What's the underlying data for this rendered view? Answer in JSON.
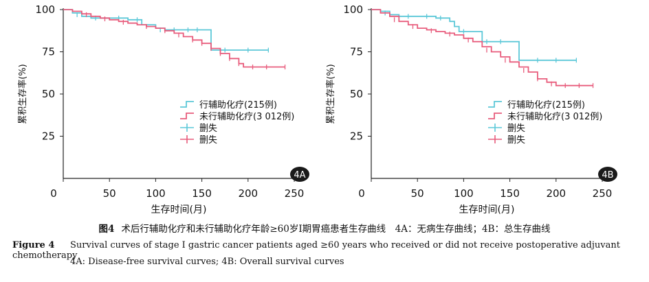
{
  "chart_data": [
    {
      "type": "line",
      "panel_tag": "4A",
      "xlabel": "生存时间(月)",
      "ylabel": "累积生存率(%)",
      "xlim": [
        0,
        250
      ],
      "ylim": [
        0,
        100
      ],
      "xticks": [
        0,
        50,
        100,
        150,
        200,
        250
      ],
      "yticks": [
        25,
        50,
        75,
        100
      ],
      "legend_position": "center-right",
      "series": [
        {
          "name": "行辅助化疗(215例)",
          "color": "#5cc8d8",
          "censor_label": "删失",
          "x": [
            0,
            10,
            20,
            30,
            40,
            55,
            70,
            85,
            100,
            110,
            120,
            130,
            140,
            150,
            160,
            160,
            222
          ],
          "y": [
            100,
            98,
            96,
            95,
            95,
            95,
            94,
            91,
            89,
            88,
            88,
            88,
            88,
            88,
            88,
            76,
            76
          ],
          "censored": [
            [
              15,
              97
            ],
            [
              35,
              95
            ],
            [
              60,
              95
            ],
            [
              80,
              94
            ],
            [
              105,
              88
            ],
            [
              120,
              88
            ],
            [
              135,
              88
            ],
            [
              145,
              88
            ],
            [
              175,
              76
            ],
            [
              200,
              76
            ],
            [
              222,
              76
            ]
          ]
        },
        {
          "name": "未行辅助化疗(3 012例)",
          "color": "#e85c7c",
          "censor_label": "删失",
          "x": [
            0,
            10,
            20,
            30,
            40,
            50,
            60,
            70,
            80,
            90,
            100,
            110,
            120,
            130,
            140,
            150,
            160,
            170,
            180,
            190,
            195,
            200,
            240
          ],
          "y": [
            100,
            99,
            97.5,
            96,
            95,
            94,
            93,
            92,
            91,
            90,
            89,
            87.5,
            86,
            84,
            82,
            80,
            77,
            74,
            71,
            68,
            66,
            66,
            66
          ],
          "censored": [
            [
              25,
              97
            ],
            [
              45,
              94.5
            ],
            [
              65,
              92.5
            ],
            [
              90,
              90
            ],
            [
              110,
              87.5
            ],
            [
              125,
              85
            ],
            [
              140,
              82
            ],
            [
              150,
              80
            ],
            [
              160,
              77
            ],
            [
              170,
              74
            ],
            [
              180,
              71
            ],
            [
              190,
              68
            ],
            [
              205,
              66
            ],
            [
              220,
              66
            ],
            [
              240,
              66
            ]
          ]
        }
      ]
    },
    {
      "type": "line",
      "panel_tag": "4B",
      "xlabel": "生存时间(月)",
      "ylabel": "累积生存率(%)",
      "xlim": [
        0,
        250
      ],
      "ylim": [
        0,
        100
      ],
      "xticks": [
        0,
        50,
        100,
        150,
        200,
        250
      ],
      "yticks": [
        25,
        50,
        75,
        100
      ],
      "legend_position": "center-right",
      "series": [
        {
          "name": "行辅助化疗(215例)",
          "color": "#5cc8d8",
          "censor_label": "删失",
          "x": [
            0,
            10,
            20,
            30,
            50,
            70,
            85,
            90,
            95,
            110,
            120,
            150,
            160,
            160,
            222
          ],
          "y": [
            100,
            99,
            97,
            96,
            96,
            95,
            93,
            90,
            87,
            87,
            81,
            81,
            81,
            70,
            70
          ],
          "censored": [
            [
              15,
              98
            ],
            [
              40,
              96
            ],
            [
              60,
              96
            ],
            [
              75,
              95
            ],
            [
              100,
              87
            ],
            [
              125,
              81
            ],
            [
              140,
              81
            ],
            [
              180,
              70
            ],
            [
              200,
              70
            ],
            [
              222,
              70
            ]
          ]
        },
        {
          "name": "未行辅助化疗(3 012例)",
          "color": "#e85c7c",
          "censor_label": "删失",
          "x": [
            0,
            10,
            20,
            30,
            40,
            50,
            60,
            70,
            80,
            90,
            100,
            110,
            120,
            130,
            140,
            150,
            160,
            170,
            180,
            190,
            200,
            240
          ],
          "y": [
            100,
            98,
            96,
            93,
            91,
            89,
            88,
            87,
            86,
            85,
            83,
            81,
            78,
            75,
            72,
            69,
            66,
            63,
            59,
            57,
            55,
            55
          ],
          "censored": [
            [
              25,
              94
            ],
            [
              45,
              90
            ],
            [
              65,
              87.5
            ],
            [
              85,
              85.5
            ],
            [
              105,
              82
            ],
            [
              125,
              76
            ],
            [
              145,
              70
            ],
            [
              165,
              64
            ],
            [
              180,
              59
            ],
            [
              195,
              56
            ],
            [
              210,
              55
            ],
            [
              225,
              55
            ],
            [
              240,
              55
            ]
          ]
        }
      ]
    }
  ],
  "caption": {
    "cn_label": "图4",
    "cn_text": "术后行辅助化疗和未行辅助化疗年龄≥60岁I期胃癌患者生存曲线　4A：无病生存曲线；4B：总生存曲线",
    "en_label": "Figure 4",
    "en_text": "Survival curves of stage I gastric cancer patients aged ≥60 years who received or did not receive postoperative adjuvant chemotherapy",
    "en_text2": "4A: Disease-free survival curves; 4B: Overall survival curves"
  }
}
